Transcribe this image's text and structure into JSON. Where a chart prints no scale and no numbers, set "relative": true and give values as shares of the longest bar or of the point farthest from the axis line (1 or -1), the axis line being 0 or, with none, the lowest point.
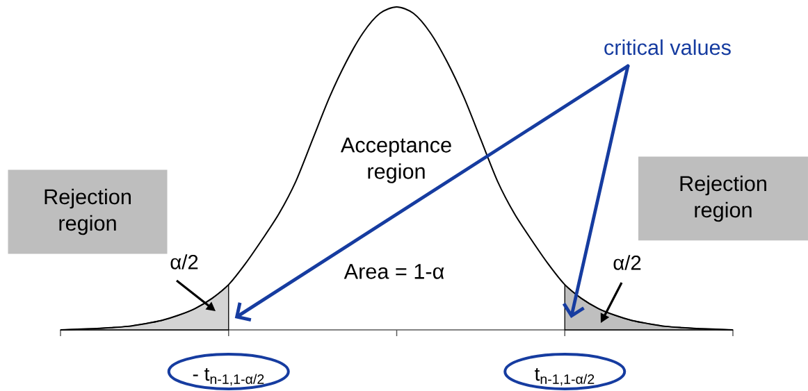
{
  "chart_data": {
    "type": "line",
    "relative": true,
    "categories": [
      null,
      null,
      null,
      null,
      null,
      null,
      null,
      null,
      null,
      null,
      "- t$_{n-1,1-α/2}$",
      null,
      null,
      null,
      null,
      null,
      null,
      null,
      null,
      null,
      null,
      null,
      null,
      null,
      null,
      null,
      null,
      null,
      null,
      null,
      "t$_{n-1,1-α/2}$",
      null,
      null,
      null,
      null,
      null,
      null,
      null,
      null,
      null,
      null
    ],
    "series": [
      {
        "type": "area",
        "color": "#d4d4d4",
        "values": [
          0,
          0.002,
          0.004,
          0.007,
          0.011,
          0.019,
          0.029,
          0.045,
          0.066,
          0.097,
          0.14,
          null,
          null,
          null,
          null,
          null,
          null,
          null,
          null,
          null,
          null,
          null,
          null,
          null,
          null,
          null,
          null,
          null,
          null,
          null,
          null,
          null,
          null,
          null,
          null,
          null,
          null,
          null,
          null,
          null,
          null
        ]
      },
      {
        "type": "area",
        "color": "#bfbfbf",
        "values": [
          null,
          null,
          null,
          null,
          null,
          null,
          null,
          null,
          null,
          null,
          null,
          null,
          null,
          null,
          null,
          null,
          null,
          null,
          null,
          null,
          null,
          null,
          null,
          null,
          null,
          null,
          null,
          null,
          null,
          null,
          0.14,
          0.097,
          0.066,
          0.045,
          0.029,
          0.019,
          0.011,
          0.007,
          0.004,
          0.002,
          0
        ]
      },
      {
        "color": "#000000",
        "values": [
          0,
          0.002,
          0.004,
          0.007,
          0.011,
          0.019,
          0.029,
          0.045,
          0.066,
          0.097,
          0.14,
          0.205,
          0.28,
          0.36,
          0.46,
          0.59,
          0.72,
          0.83,
          0.92,
          0.98,
          1,
          0.98,
          0.92,
          0.83,
          0.72,
          0.59,
          0.46,
          0.36,
          0.28,
          0.205,
          0.14,
          0.097,
          0.066,
          0.045,
          0.029,
          0.019,
          0.011,
          0.007,
          0.004,
          0.002,
          0
        ]
      }
    ],
    "annotations": [
      "Rejection region",
      "Rejection region",
      "Acceptance region",
      "Area = 1-α",
      "α/2",
      "α/2",
      "critical values"
    ]
  }
}
